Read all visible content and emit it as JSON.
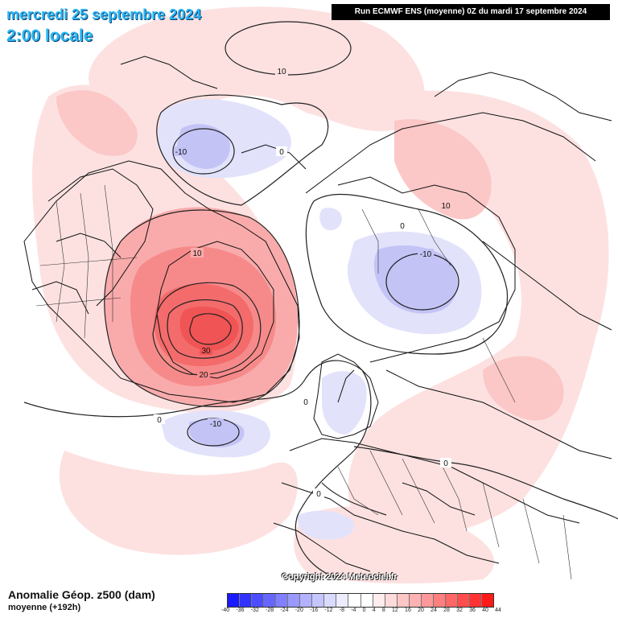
{
  "header": {
    "date": "mercredi 25 septembre 2024",
    "time": "2:00 locale",
    "run_info": "Run ECMWF ENS (moyenne) 0Z du mardi 17 septembre 2024"
  },
  "footer": {
    "copyright": "Copyright 2024 Meteociel.fr",
    "legend_title": "Anomalie Géop. z500 (dam)",
    "legend_subtitle": "moyenne  (+192h)"
  },
  "scale": {
    "colors": [
      "#1a1aff",
      "#3333ff",
      "#4d4dff",
      "#6666ff",
      "#7f7fff",
      "#9999ff",
      "#b2b2ff",
      "#c6c6ff",
      "#dadaff",
      "#ececff",
      "#ffffff",
      "#ffffff",
      "#ffecec",
      "#ffdada",
      "#ffc6c6",
      "#ffb2b2",
      "#ff9999",
      "#ff7f7f",
      "#ff6666",
      "#ff4d4d",
      "#ff3333",
      "#ff1a1a"
    ],
    "ticks": [
      "-40",
      "-36",
      "-32",
      "-28",
      "-24",
      "-20",
      "-16",
      "-12",
      "-8",
      "-4",
      "0",
      "4",
      "8",
      "12",
      "16",
      "20",
      "24",
      "28",
      "32",
      "36",
      "40",
      "44"
    ]
  },
  "contour_labels": {
    "top_north": "10",
    "alaska_low": "-10",
    "alaska_zero": "0",
    "asia_ten": "10",
    "barents_zero": "0",
    "siberia_low": "-10",
    "canada_ten": "10",
    "greenland_thirty": "30",
    "greenland_twenty": "20",
    "atlantic_zero": "0",
    "atlantic_low": "-10",
    "scandi_zero": "0",
    "europe_zero_left": "0",
    "europe_zero_right": "0"
  }
}
